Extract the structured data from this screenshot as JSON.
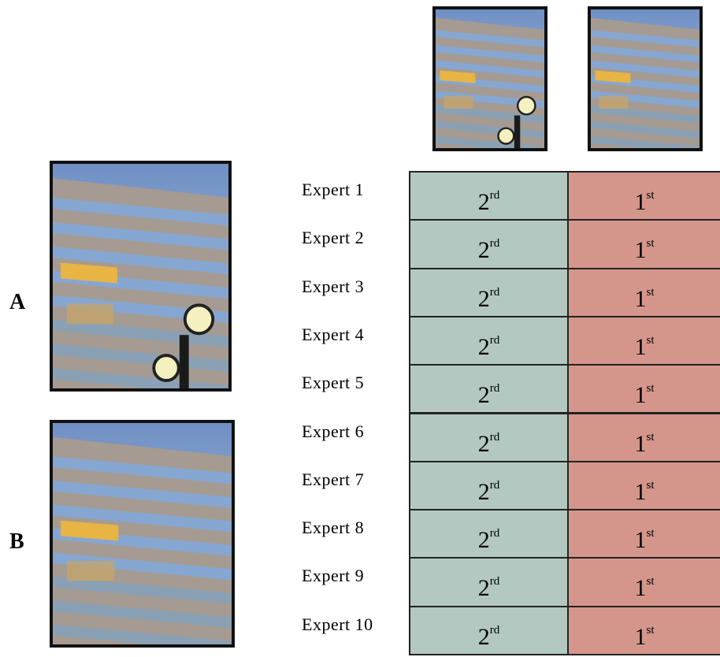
{
  "labels": {
    "a": "A",
    "b": "B"
  },
  "table": {
    "rows": [
      {
        "expert": "Expert 1",
        "a": {
          "num": "2",
          "sup": "rd"
        },
        "b": {
          "num": "1",
          "sup": "st"
        }
      },
      {
        "expert": "Expert 2",
        "a": {
          "num": "2",
          "sup": "rd"
        },
        "b": {
          "num": "1",
          "sup": "st"
        }
      },
      {
        "expert": "Expert 3",
        "a": {
          "num": "2",
          "sup": "rd"
        },
        "b": {
          "num": "1",
          "sup": "st"
        }
      },
      {
        "expert": "Expert 4",
        "a": {
          "num": "2",
          "sup": "rd"
        },
        "b": {
          "num": "1",
          "sup": "st"
        }
      },
      {
        "expert": "Expert 5",
        "a": {
          "num": "2",
          "sup": "rd"
        },
        "b": {
          "num": "1",
          "sup": "st"
        }
      },
      {
        "expert": "Expert 6",
        "a": {
          "num": "2",
          "sup": "rd"
        },
        "b": {
          "num": "1",
          "sup": "st"
        }
      },
      {
        "expert": "Expert 7",
        "a": {
          "num": "2",
          "sup": "rd"
        },
        "b": {
          "num": "1",
          "sup": "st"
        }
      },
      {
        "expert": "Expert 8",
        "a": {
          "num": "2",
          "sup": "rd"
        },
        "b": {
          "num": "1",
          "sup": "st"
        }
      },
      {
        "expert": "Expert 9",
        "a": {
          "num": "2",
          "sup": "rd"
        },
        "b": {
          "num": "1",
          "sup": "st"
        }
      },
      {
        "expert": "Expert 10",
        "a": {
          "num": "2",
          "sup": "rd"
        },
        "b": {
          "num": "1",
          "sup": "st"
        }
      }
    ]
  }
}
